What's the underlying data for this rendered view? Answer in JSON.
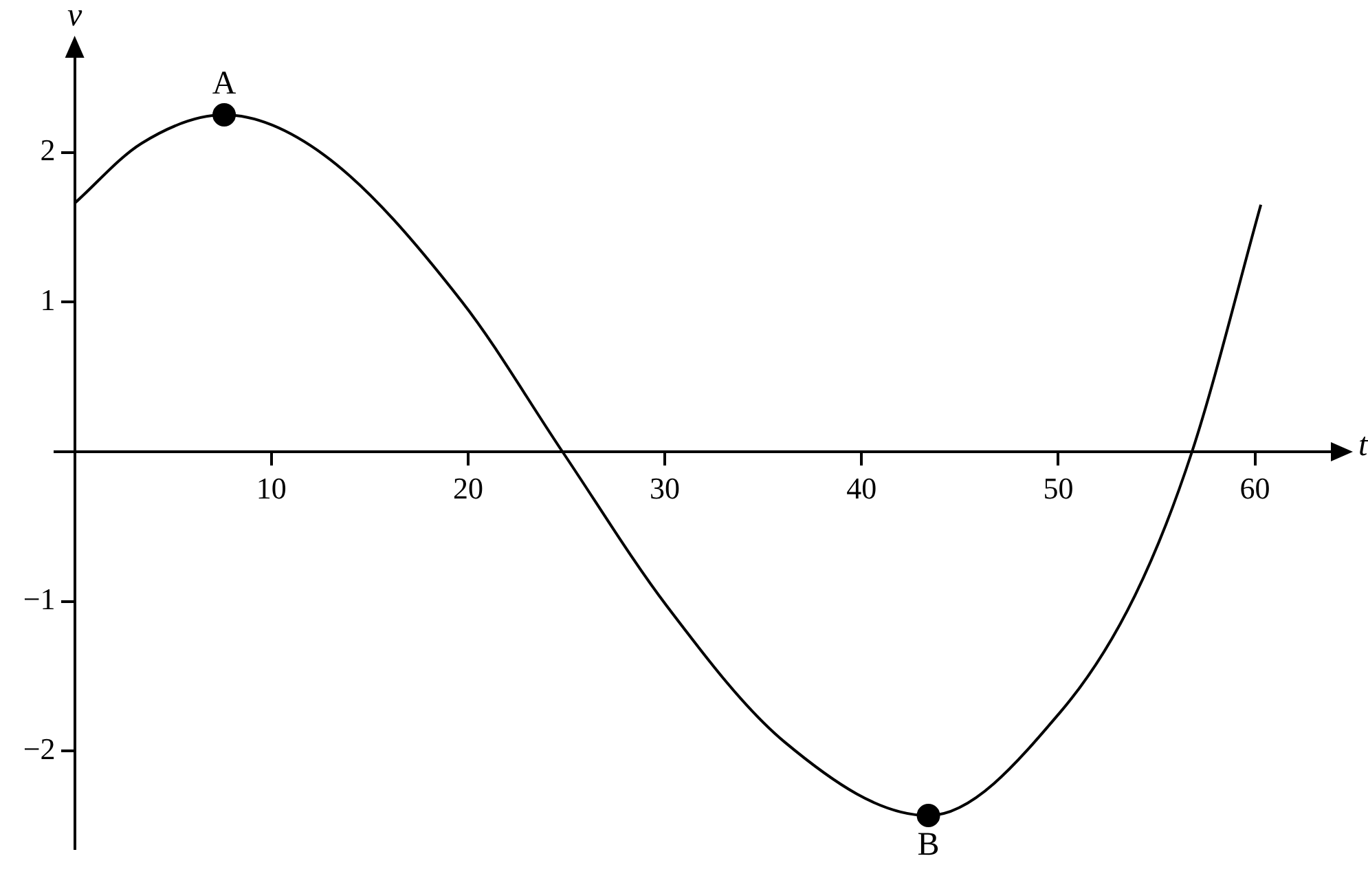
{
  "chart_data": {
    "type": "line",
    "xlabel": "t",
    "ylabel": "v",
    "xlim": [
      -1,
      64
    ],
    "ylim": [
      -2.65,
      2.65
    ],
    "xticks": [
      10,
      20,
      30,
      40,
      50,
      60
    ],
    "yticks": [
      -2,
      -1,
      1,
      2
    ],
    "grid": false,
    "legend": false,
    "series": [
      {
        "type": "line",
        "color": "#000000",
        "marker": "none",
        "x": [
          0,
          3.4,
          7.6,
          12.7,
          19.7,
          24.8,
          30.1,
          36.1,
          43.4,
          50.1,
          53.9,
          56.8,
          60.3
        ],
        "values": [
          1.66,
          2.06,
          2.25,
          1.98,
          1.0,
          0,
          -1.03,
          -1.94,
          -2.43,
          -1.74,
          -0.96,
          0,
          1.65
        ]
      },
      {
        "type": "scatter",
        "color": "#000000",
        "marker": "circle",
        "x": [
          7.6,
          43.4
        ],
        "values": [
          2.25,
          -2.43
        ]
      }
    ],
    "annotations": [
      {
        "text": "A",
        "x": 7.6,
        "y": 2.25
      },
      {
        "text": "B",
        "x": 43.4,
        "y": -2.43
      }
    ]
  }
}
